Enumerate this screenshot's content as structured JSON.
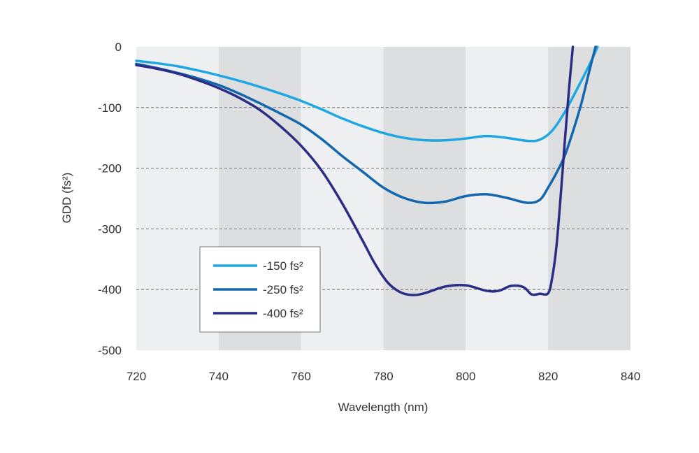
{
  "chart_data": {
    "type": "line",
    "xlabel": "Wavelength (nm)",
    "ylabel": "GDD (fs²)",
    "xlim": [
      720,
      840
    ],
    "ylim": [
      -500,
      0
    ],
    "x_ticks": [
      "720",
      "740",
      "760",
      "780",
      "800",
      "820",
      "840"
    ],
    "y_ticks": [
      "0",
      "-100",
      "-200",
      "-300",
      "-400",
      "-500"
    ],
    "gridlines_y": [
      -100,
      -200,
      -300,
      -400
    ],
    "grid": true,
    "legend_position": "lower-left",
    "series": [
      {
        "name": "-150 fs²",
        "color": "#1ea7e1",
        "x": [
          720,
          725,
          730,
          735,
          740,
          745,
          750,
          755,
          760,
          765,
          770,
          775,
          780,
          785,
          790,
          795,
          800,
          805,
          810,
          815,
          818,
          821,
          824,
          827,
          830,
          832
        ],
        "y": [
          -23,
          -27,
          -32,
          -39,
          -47,
          -56,
          -66,
          -77,
          -89,
          -103,
          -118,
          -131,
          -142,
          -150,
          -154,
          -154,
          -151,
          -147,
          -150,
          -155,
          -153,
          -138,
          -108,
          -70,
          -30,
          0
        ]
      },
      {
        "name": "-250 fs²",
        "color": "#1467ad",
        "x": [
          720,
          725,
          730,
          735,
          740,
          745,
          750,
          755,
          760,
          765,
          770,
          775,
          780,
          785,
          790,
          795,
          800,
          805,
          810,
          815,
          818,
          820,
          822,
          824,
          826,
          828,
          830,
          831.5
        ],
        "y": [
          -28,
          -35,
          -43,
          -52,
          -63,
          -77,
          -93,
          -110,
          -128,
          -152,
          -180,
          -206,
          -232,
          -249,
          -257,
          -255,
          -246,
          -243,
          -249,
          -257,
          -252,
          -232,
          -208,
          -180,
          -140,
          -95,
          -40,
          0
        ]
      },
      {
        "name": "-400 fs²",
        "color": "#2b2d85",
        "x": [
          720,
          725,
          730,
          735,
          740,
          745,
          750,
          755,
          760,
          765,
          770,
          775,
          778,
          781,
          784,
          787,
          790,
          795,
          800,
          805,
          808,
          811,
          814,
          816,
          818,
          820,
          821,
          822,
          823,
          824,
          825,
          826
        ],
        "y": [
          -30,
          -36,
          -44,
          -55,
          -68,
          -84,
          -104,
          -131,
          -163,
          -204,
          -258,
          -320,
          -358,
          -388,
          -404,
          -409,
          -406,
          -395,
          -393,
          -402,
          -402,
          -394,
          -396,
          -408,
          -407,
          -406,
          -380,
          -330,
          -250,
          -160,
          -75,
          0
        ]
      }
    ]
  },
  "page": {
    "background": "#ffffff",
    "band_light": "#edeff0",
    "band_dark": "#dcdee0",
    "grid_color": "#777777",
    "text_color": "#333333"
  }
}
